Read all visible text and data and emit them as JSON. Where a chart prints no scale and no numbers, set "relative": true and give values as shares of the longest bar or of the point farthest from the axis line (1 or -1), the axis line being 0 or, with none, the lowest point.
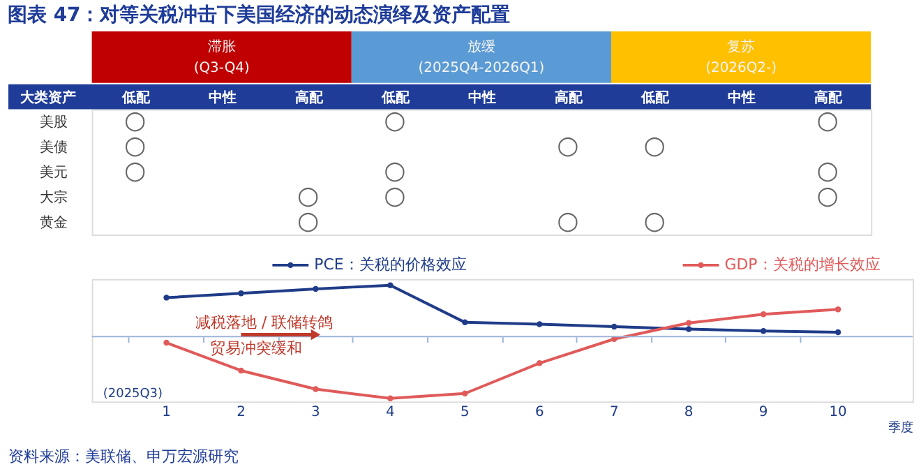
{
  "chart_data": [
    {
      "type": "heatmap",
      "title": "图表 47：对等关税冲击下美国经济的动态演绎及资产配置",
      "ylabel": "大类资产",
      "categories": [
        "低配",
        "中性",
        "高配",
        "低配",
        "中性",
        "高配",
        "低配",
        "中性",
        "高配"
      ],
      "y_categories": [
        "美股",
        "美债",
        "美元",
        "大宗",
        "黄金"
      ],
      "cells": [
        [
          null,
          null,
          null,
          null,
          null,
          null,
          null,
          null,
          null
        ],
        [
          null,
          null,
          null,
          null,
          null,
          null,
          null,
          null,
          null
        ],
        [
          null,
          null,
          null,
          null,
          null,
          null,
          null,
          null,
          null
        ],
        [
          null,
          null,
          null,
          null,
          null,
          null,
          null,
          null,
          null
        ],
        [
          null,
          null,
          null,
          null,
          null,
          null,
          null,
          null,
          null
        ]
      ],
      "cell_labels": [
        [
          "○",
          null,
          null,
          "○",
          null,
          null,
          null,
          null,
          "○"
        ],
        [
          "○",
          null,
          null,
          null,
          null,
          "○",
          "○",
          null,
          null
        ],
        [
          "○",
          null,
          null,
          "○",
          null,
          null,
          null,
          null,
          "○"
        ],
        [
          null,
          null,
          "○",
          "○",
          null,
          null,
          null,
          null,
          "○"
        ],
        [
          null,
          null,
          "○",
          null,
          null,
          "○",
          "○",
          null,
          null
        ]
      ],
      "annotations": [
        "滞胀\n(Q3-Q4)",
        "放缓\n(2025Q4-2026Q1)",
        "复苏\n(2026Q2-)"
      ]
    },
    {
      "type": "line",
      "relative": true,
      "xlabel": "季度",
      "ref_lines": [
        {
          "axis": "y",
          "value": 0,
          "color": "#9db4d8"
        }
      ],
      "legend": "top",
      "marker": "circle",
      "line_style": "solid",
      "categories": [
        "1",
        "2",
        "3",
        "4",
        "5",
        "6",
        "7",
        "8",
        "9",
        "10"
      ],
      "series": [
        {
          "name": "PCE：关税的价格效应",
          "color": "#1f3c88",
          "values": [
            0.63,
            0.7,
            0.77,
            0.83,
            0.23,
            0.2,
            0.16,
            0.12,
            0.09,
            0.07
          ]
        },
        {
          "name": "GDP：关税的增长效应",
          "color": "#e05a5a",
          "values": [
            -0.1,
            -0.55,
            -0.85,
            -1,
            -0.92,
            -0.43,
            -0.04,
            0.22,
            0.36,
            0.44
          ]
        }
      ],
      "annotations": [
        "减税落地 / 联储转鸽",
        "贸易冲突缓和",
        "(2025Q3)",
        "资料来源：美联储、申万宏源研究"
      ]
    }
  ]
}
